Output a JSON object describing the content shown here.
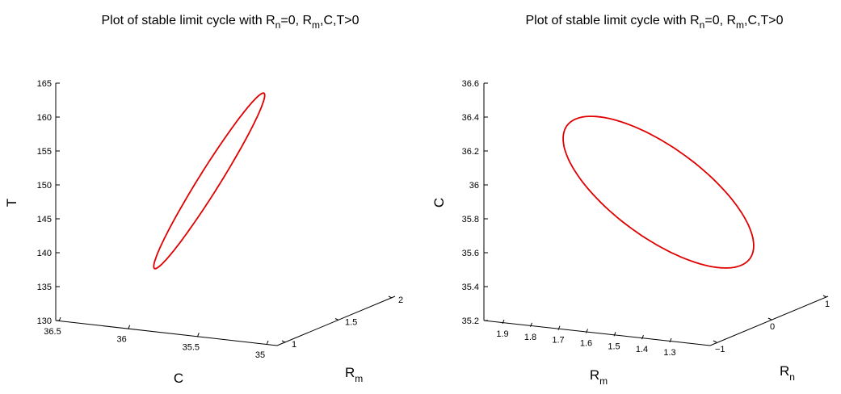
{
  "chart_data": [
    {
      "type": "line",
      "dimension": "3d",
      "title": {
        "main": "Plot of stable limit cycle with R",
        "s1": "n",
        "mid": "=0, R",
        "s2": "m",
        "tail": ",C,T>0"
      },
      "axes": {
        "x": {
          "label": "C",
          "ticks": [
            "36.5",
            "36",
            "35.5",
            "35"
          ]
        },
        "y": {
          "label": "R",
          "sub": "m",
          "ticks": [
            "1",
            "1.5",
            "2"
          ]
        },
        "z": {
          "label": "T",
          "ticks": [
            "130",
            "135",
            "140",
            "145",
            "150",
            "155",
            "160",
            "165"
          ],
          "range": [
            130,
            165
          ]
        }
      },
      "series": [
        {
          "color": "#e00000",
          "shape": "closed limit cycle",
          "T_min": 137.5,
          "T_max": 163.5
        }
      ]
    },
    {
      "type": "line",
      "dimension": "3d",
      "title": {
        "main": "Plot of stable limit cycle with R",
        "s1": "n",
        "mid": "=0, R",
        "s2": "m",
        "tail": ",C,T>0"
      },
      "axes": {
        "x": {
          "label": "R",
          "sub": "m",
          "ticks": [
            "1.9",
            "1.8",
            "1.7",
            "1.6",
            "1.5",
            "1.4",
            "1.3"
          ]
        },
        "y": {
          "label": "R",
          "sub": "n",
          "ticks": [
            "−1",
            "0",
            "1"
          ]
        },
        "z": {
          "label": "C",
          "ticks": [
            "35.2",
            "35.4",
            "35.6",
            "35.8",
            "36",
            "36.2",
            "36.4",
            "36.6"
          ],
          "range": [
            35.2,
            36.6
          ]
        }
      },
      "series": [
        {
          "color": "#e00000",
          "shape": "closed limit cycle",
          "C_min": 35.45,
          "C_max": 36.48
        }
      ]
    }
  ]
}
